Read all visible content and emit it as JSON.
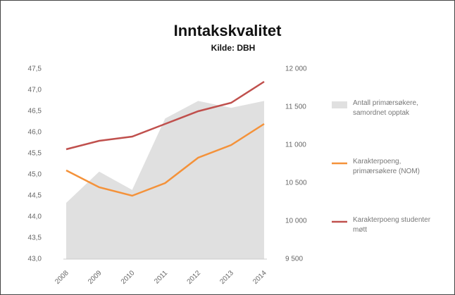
{
  "chart_data": {
    "type": "line",
    "title": "Inntakskvalitet",
    "subtitle": "Kilde: DBH",
    "categories": [
      "2008",
      "2009",
      "2010",
      "2011",
      "2012",
      "2013",
      "2014"
    ],
    "series": [
      {
        "name": "Antall primærsøkere, samordnet opptak",
        "color": "#e0e0e0",
        "kind": "area",
        "axis": "y2",
        "values": [
          10240,
          10650,
          10410,
          11350,
          11580,
          11490,
          11580
        ]
      },
      {
        "name": "Karakterpoeng, primærsøkere (NOM)",
        "color": "#f4923a",
        "kind": "line",
        "values": [
          45.1,
          44.7,
          44.5,
          44.8,
          45.4,
          45.7,
          46.2
        ]
      },
      {
        "name": "Karakterpoeng studenter møtt",
        "color": "#c0504d",
        "kind": "line",
        "values": [
          45.6,
          45.8,
          45.9,
          46.2,
          46.5,
          46.7,
          47.2
        ]
      }
    ],
    "ylim": [
      43,
      47.5
    ],
    "yticks": [
      {
        "value": 43,
        "label": "43,0"
      },
      {
        "value": 43.5,
        "label": "43,5"
      },
      {
        "value": 44,
        "label": "44,0"
      },
      {
        "value": 44.5,
        "label": "44,5"
      },
      {
        "value": 45,
        "label": "45,0"
      },
      {
        "value": 45.5,
        "label": "45,5"
      },
      {
        "value": 46,
        "label": "46,0"
      },
      {
        "value": 46.5,
        "label": "46,5"
      },
      {
        "value": 47,
        "label": "47,0"
      },
      {
        "value": 47.5,
        "label": "47,5"
      }
    ],
    "y2lim": [
      9500,
      12000
    ],
    "y2ticks": [
      {
        "value": 9500,
        "label": "9 500"
      },
      {
        "value": 10000,
        "label": "10 000"
      },
      {
        "value": 10500,
        "label": "10 500"
      },
      {
        "value": 11000,
        "label": "11 000"
      },
      {
        "value": 11500,
        "label": "11 500"
      },
      {
        "value": 12000,
        "label": "12 000"
      }
    ],
    "grid": false,
    "legend": "right"
  }
}
